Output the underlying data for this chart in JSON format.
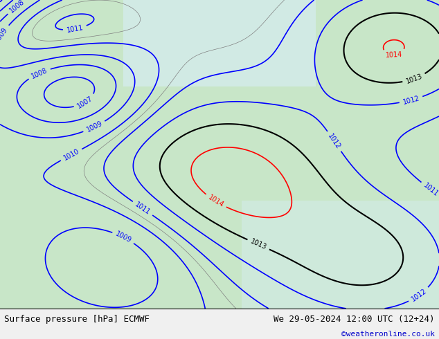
{
  "title_left": "Surface pressure [hPa] ECMWF",
  "title_right": "We 29-05-2024 12:00 UTC (12+24)",
  "credit": "©weatheronline.co.uk",
  "bg_color": "#f0f0f0",
  "map_bg": "#e8f4e8",
  "border_color": "#000000",
  "bottom_bar_color": "#ffffff",
  "blue_contour_color": "#0000ff",
  "red_contour_color": "#ff0000",
  "black_contour_color": "#000000",
  "gray_contour_color": "#808080",
  "bottom_text_color": "#000000",
  "credit_color": "#0000cc",
  "fig_width": 6.34,
  "fig_height": 4.9,
  "dpi": 100
}
